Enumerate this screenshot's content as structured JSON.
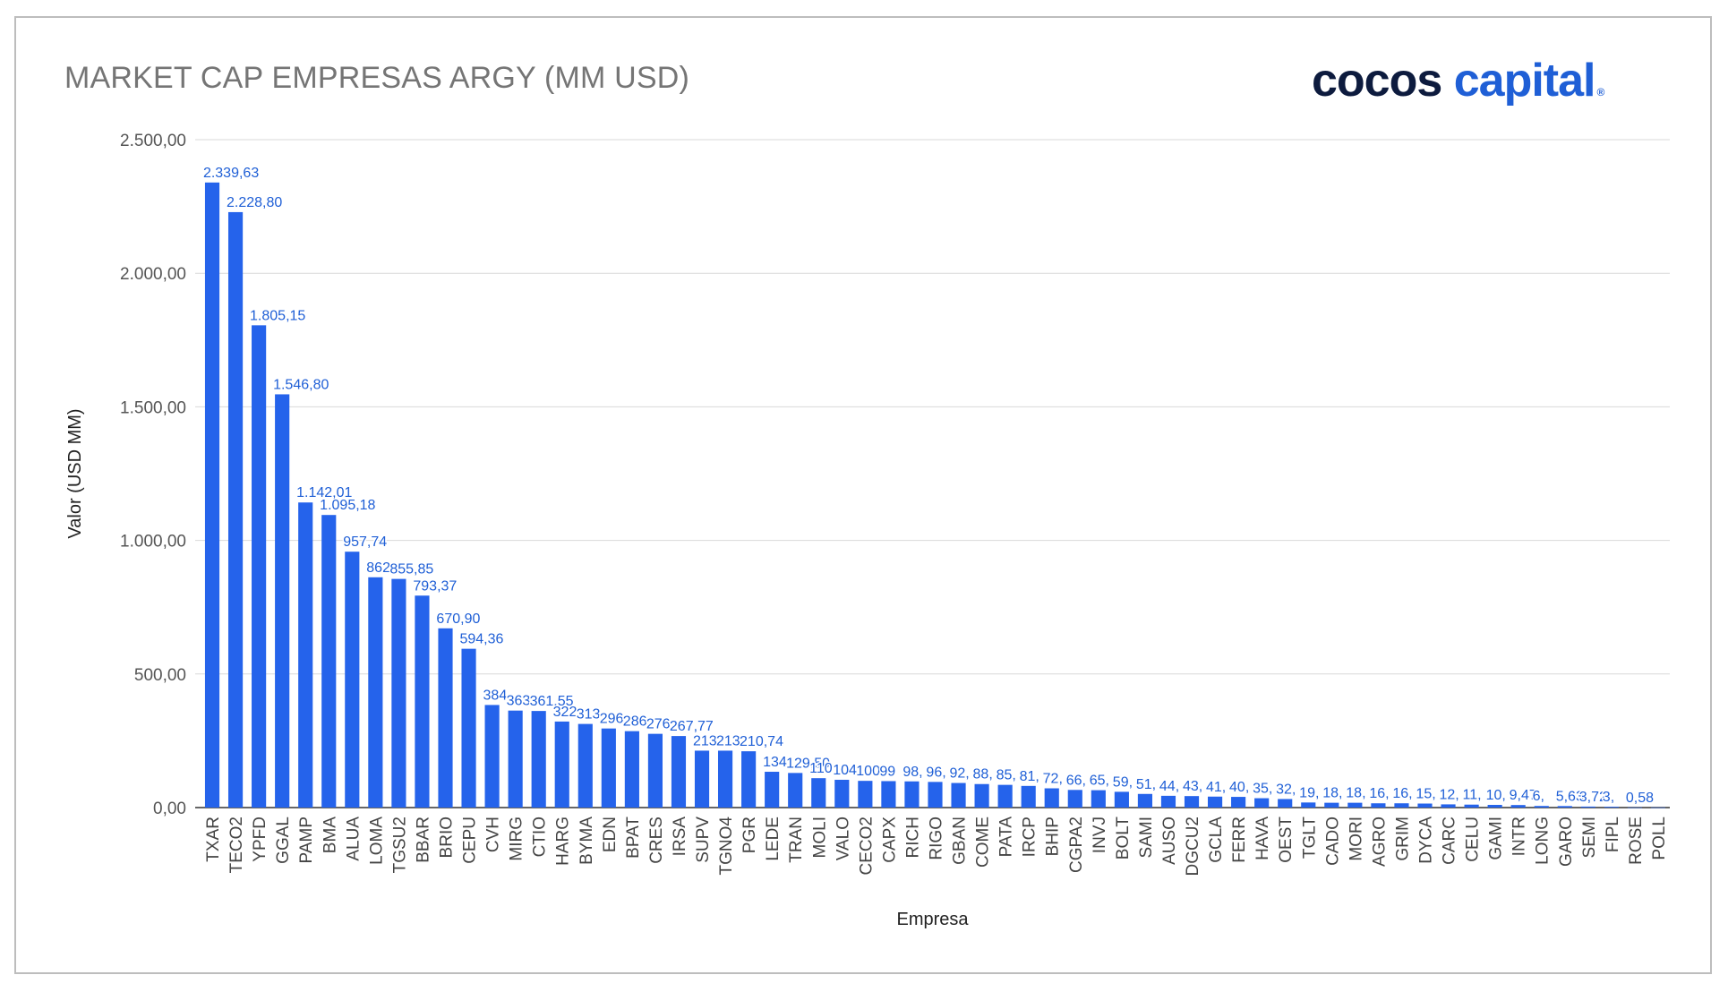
{
  "header": {
    "title": "MARKET CAP EMPRESAS ARGY (MM USD)"
  },
  "brand": {
    "word1": "cocos",
    "word2": "capital",
    "mark": "®",
    "dark_color": "#0d1b3e",
    "accent_color": "#1f5fd6"
  },
  "chart_data": {
    "type": "bar",
    "title": "MARKET CAP EMPRESAS ARGY (MM USD)",
    "xlabel": "Empresa",
    "ylabel": "Valor (USD MM)",
    "ylim": [
      0,
      2500
    ],
    "yticks": [
      0,
      500,
      1000,
      1500,
      2000,
      2500
    ],
    "ytick_labels": [
      "0,00",
      "500,00",
      "1.000,00",
      "1.500,00",
      "2.000,00",
      "2.500,00"
    ],
    "grid": true,
    "bar_color": "#2563eb",
    "categories": [
      "TXAR",
      "TECO2",
      "YPFD",
      "GGAL",
      "PAMP",
      "BMA",
      "ALUA",
      "LOMA",
      "TGSU2",
      "BBAR",
      "BRIO",
      "CEPU",
      "CVH",
      "MIRG",
      "CTIO",
      "HARG",
      "BYMA",
      "EDN",
      "BPAT",
      "CRES",
      "IRSA",
      "SUPV",
      "TGNO4",
      "PGR",
      "LEDE",
      "TRAN",
      "MOLI",
      "VALO",
      "CECO2",
      "CAPX",
      "RICH",
      "RIGO",
      "GBAN",
      "COME",
      "PATA",
      "IRCP",
      "BHIP",
      "CGPA2",
      "INVJ",
      "BOLT",
      "SAMI",
      "AUSO",
      "DGCU2",
      "GCLA",
      "FERR",
      "HAVA",
      "OEST",
      "TGLT",
      "CADO",
      "MORI",
      "AGRO",
      "GRIM",
      "DYCA",
      "CARC",
      "CELU",
      "GAMI",
      "INTR",
      "LONG",
      "GARO",
      "SEMI",
      "FIPL",
      "ROSE",
      "POLL"
    ],
    "values": [
      2339.63,
      2228.8,
      1805.15,
      1546.8,
      1142.01,
      1095.18,
      957.74,
      862.0,
      855.85,
      793.37,
      670.9,
      594.36,
      384.0,
      363.0,
      361.55,
      322.0,
      313.0,
      296.0,
      286.0,
      276.0,
      267.77,
      213.0,
      213.0,
      210.74,
      134.0,
      129.5,
      110.0,
      104.0,
      100.0,
      99.0,
      98.0,
      96.0,
      92.0,
      88.0,
      85.0,
      81.0,
      72.0,
      66.0,
      65.0,
      59.0,
      51.0,
      44.0,
      43.0,
      41.0,
      40.0,
      35.0,
      32.0,
      19.0,
      18.0,
      18.0,
      16.0,
      16.0,
      15.0,
      12.0,
      11.0,
      10.0,
      9.47,
      6.0,
      5.63,
      3.72,
      3.0,
      0.58,
      0.58
    ],
    "data_labels": [
      "2.339,63",
      "2.228,80",
      "1.805,15",
      "1.546,80",
      "1.142,01",
      "1.095,18",
      "957,74",
      "862",
      "855,85",
      "793,37",
      "670,90",
      "594,36",
      "384",
      "363",
      "361,55",
      "322",
      "313",
      "296",
      "286",
      "276",
      "267,77",
      "213",
      "213",
      "210,74",
      "134",
      "129,50",
      "110",
      "104",
      "100",
      "99",
      "98,",
      "96,",
      "92,",
      "88,",
      "85,",
      "81,",
      "72,",
      "66,",
      "65,",
      "59,",
      "51,",
      "44,",
      "43,",
      "41,",
      "40,",
      "35,",
      "32,",
      "19,",
      "18,",
      "18,",
      "16,",
      "16,",
      "15,",
      "12,",
      "11,",
      "10,",
      "9,47",
      "6,",
      "5,63",
      "3,72",
      "3,",
      "0,58",
      ""
    ]
  }
}
